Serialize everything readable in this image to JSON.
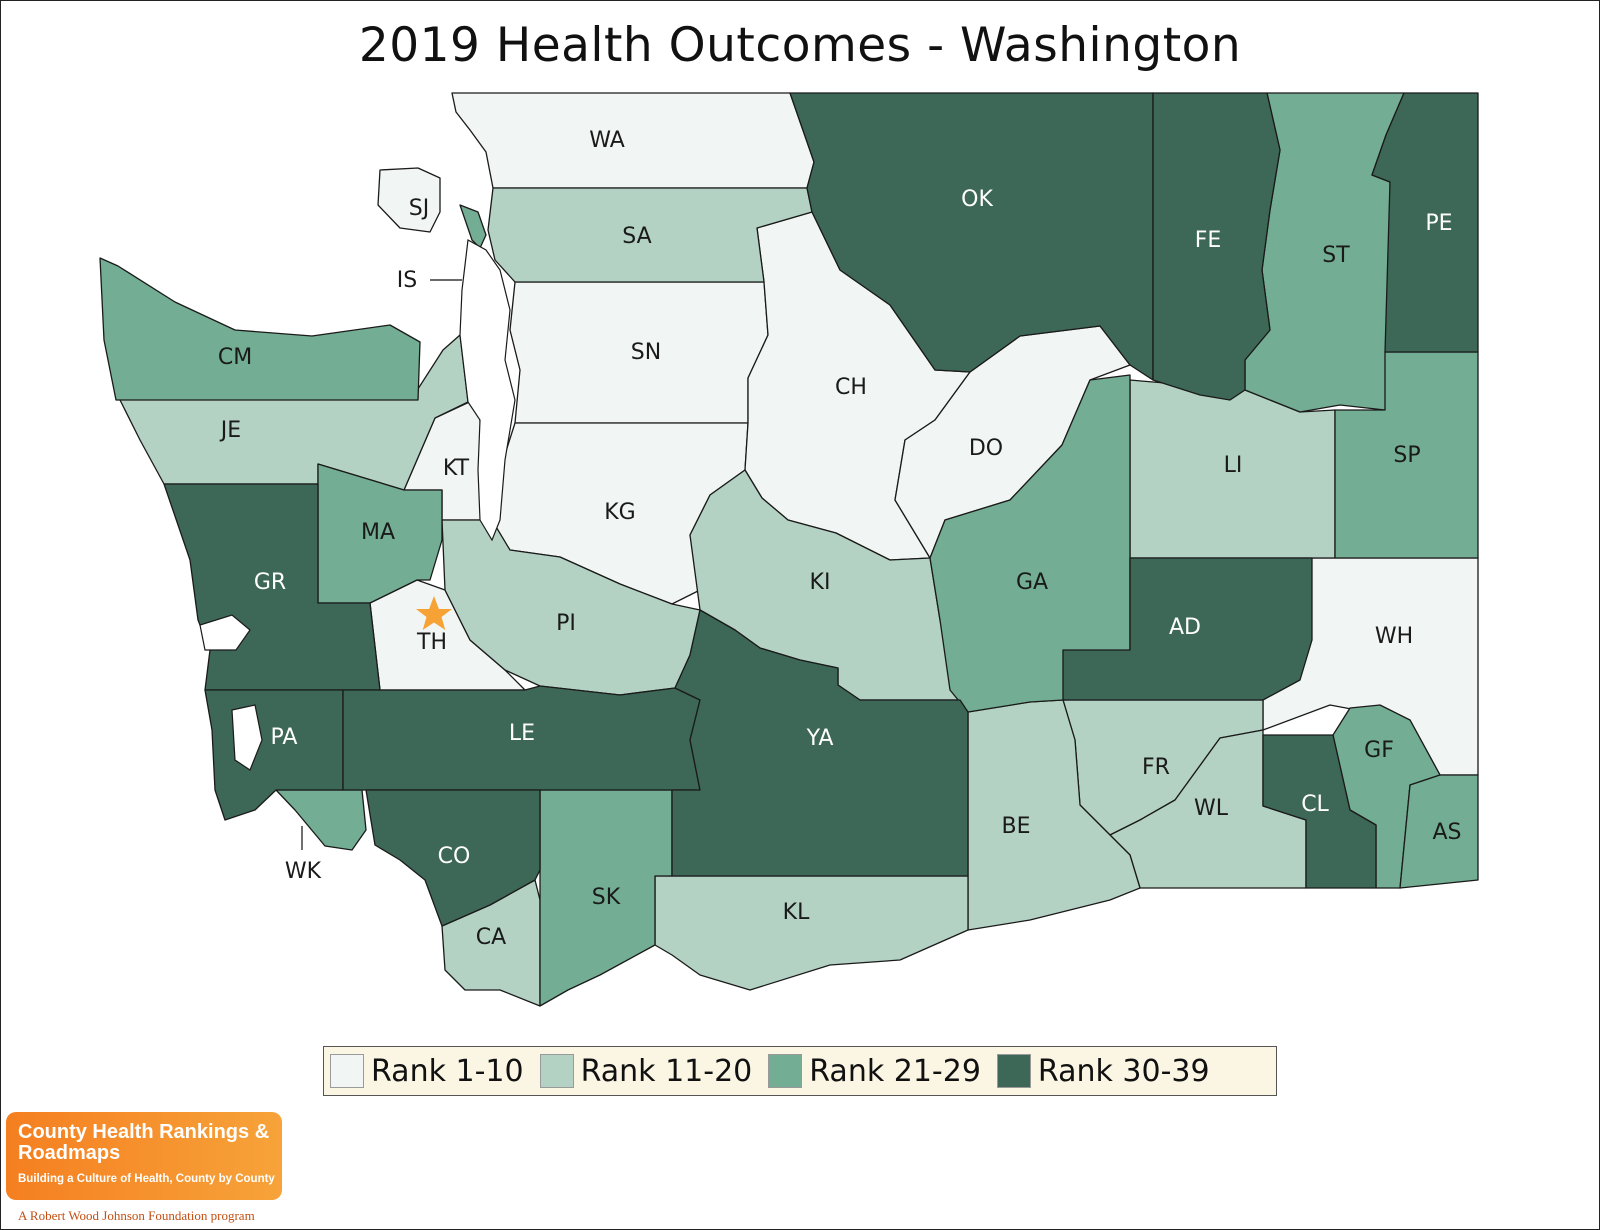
{
  "title": "2019 Health Outcomes - Washington",
  "colors": {
    "rank_1_10": "#f1f5f3",
    "rank_11_20": "#b3d2c3",
    "rank_21_29": "#73ad93",
    "rank_30_39": "#3d6756"
  },
  "legend": [
    {
      "label": "Rank 1-10",
      "color": "#f1f5f3"
    },
    {
      "label": "Rank 11-20",
      "color": "#b3d2c3"
    },
    {
      "label": "Rank 21-29",
      "color": "#73ad93"
    },
    {
      "label": "Rank 30-39",
      "color": "#3d6756"
    }
  ],
  "counties": [
    {
      "code": "WA",
      "rank_group": "Rank 1-10"
    },
    {
      "code": "SJ",
      "rank_group": "Rank 1-10"
    },
    {
      "code": "IS",
      "rank_group": "Rank 21-29"
    },
    {
      "code": "SA",
      "rank_group": "Rank 11-20"
    },
    {
      "code": "OK",
      "rank_group": "Rank 30-39"
    },
    {
      "code": "FE",
      "rank_group": "Rank 30-39"
    },
    {
      "code": "ST",
      "rank_group": "Rank 21-29"
    },
    {
      "code": "PE",
      "rank_group": "Rank 30-39"
    },
    {
      "code": "CM",
      "rank_group": "Rank 21-29"
    },
    {
      "code": "JE",
      "rank_group": "Rank 11-20"
    },
    {
      "code": "SN",
      "rank_group": "Rank 1-10"
    },
    {
      "code": "CH",
      "rank_group": "Rank 1-10"
    },
    {
      "code": "DO",
      "rank_group": "Rank 1-10"
    },
    {
      "code": "LI",
      "rank_group": "Rank 11-20"
    },
    {
      "code": "SP",
      "rank_group": "Rank 21-29"
    },
    {
      "code": "KT",
      "rank_group": "Rank 1-10"
    },
    {
      "code": "KG",
      "rank_group": "Rank 1-10"
    },
    {
      "code": "MA",
      "rank_group": "Rank 21-29"
    },
    {
      "code": "GR",
      "rank_group": "Rank 30-39"
    },
    {
      "code": "TH",
      "rank_group": "Rank 1-10"
    },
    {
      "code": "PI",
      "rank_group": "Rank 11-20"
    },
    {
      "code": "KI",
      "rank_group": "Rank 11-20"
    },
    {
      "code": "GA",
      "rank_group": "Rank 21-29"
    },
    {
      "code": "AD",
      "rank_group": "Rank 30-39"
    },
    {
      "code": "WH",
      "rank_group": "Rank 1-10"
    },
    {
      "code": "PA",
      "rank_group": "Rank 30-39"
    },
    {
      "code": "LE",
      "rank_group": "Rank 30-39"
    },
    {
      "code": "YA",
      "rank_group": "Rank 30-39"
    },
    {
      "code": "FR",
      "rank_group": "Rank 11-20"
    },
    {
      "code": "WL",
      "rank_group": "Rank 11-20"
    },
    {
      "code": "GF",
      "rank_group": "Rank 21-29"
    },
    {
      "code": "CL",
      "rank_group": "Rank 30-39"
    },
    {
      "code": "AS",
      "rank_group": "Rank 21-29"
    },
    {
      "code": "BE",
      "rank_group": "Rank 11-20"
    },
    {
      "code": "WK",
      "rank_group": "Rank 21-29"
    },
    {
      "code": "CO",
      "rank_group": "Rank 30-39"
    },
    {
      "code": "CA",
      "rank_group": "Rank 11-20"
    },
    {
      "code": "SK",
      "rank_group": "Rank 21-29"
    },
    {
      "code": "KL",
      "rank_group": "Rank 11-20"
    }
  ],
  "marker": {
    "county": "TH",
    "icon": "star-icon",
    "color": "#f7a234"
  },
  "logo": {
    "line1": "County Health Rankings & Roadmaps",
    "line2": "Building a Culture of Health, County by County",
    "line3": "A Robert Wood Johnson Foundation program"
  }
}
